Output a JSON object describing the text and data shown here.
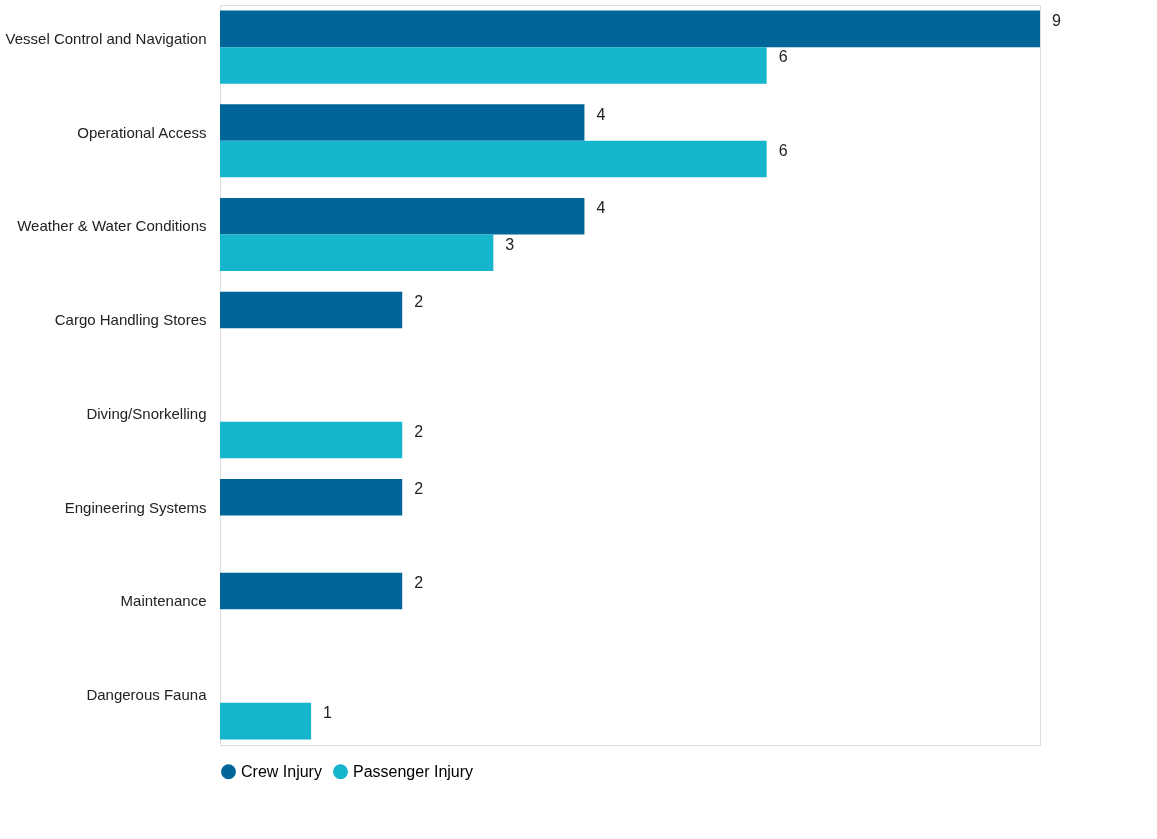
{
  "chart_data": {
    "type": "bar",
    "orientation": "horizontal",
    "categories": [
      "Vessel Control and Navigation",
      "Operational Access",
      "Weather & Water Conditions",
      "Cargo Handling Stores",
      "Diving/Snorkelling",
      "Engineering Systems",
      "Maintenance",
      "Dangerous Fauna"
    ],
    "series": [
      {
        "name": "Crew Injury",
        "color": "#00669a",
        "values": [
          9,
          4,
          4,
          2,
          null,
          2,
          2,
          null
        ]
      },
      {
        "name": "Passenger Injury",
        "color": "#15b5cd",
        "values": [
          6,
          6,
          3,
          null,
          2,
          null,
          null,
          1
        ]
      }
    ],
    "data_labels": true,
    "legend": "bottom"
  }
}
